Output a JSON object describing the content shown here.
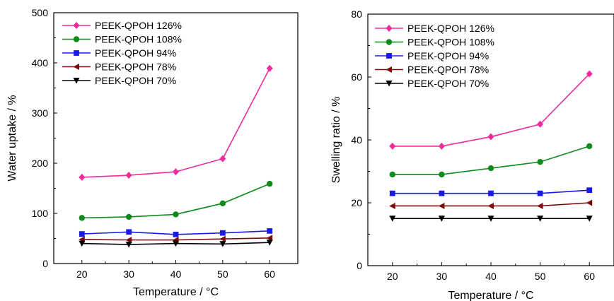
{
  "chart_data": [
    {
      "type": "line",
      "title": "",
      "xlabel": "Temperature / °C",
      "ylabel": "Water uptake / %",
      "xlim": [
        14,
        66
      ],
      "ylim": [
        0,
        500
      ],
      "x": [
        20,
        30,
        40,
        50,
        60
      ],
      "xticks": [
        20,
        30,
        40,
        50,
        60
      ],
      "yticks": [
        0,
        100,
        200,
        300,
        400,
        500
      ],
      "legend_position": "top-left",
      "series": [
        {
          "name": "PEEK-QPOH 126%",
          "color": "#ee2a9c",
          "marker": "diamond",
          "values": [
            172,
            176,
            183,
            209,
            389
          ]
        },
        {
          "name": "PEEK-QPOH 108%",
          "color": "#0e8a1d",
          "marker": "circle",
          "values": [
            91,
            93,
            98,
            120,
            159
          ]
        },
        {
          "name": "PEEK-QPOH 94%",
          "color": "#1a1ae6",
          "marker": "square",
          "values": [
            59,
            63,
            58,
            61,
            65
          ]
        },
        {
          "name": "PEEK-QPOH 78%",
          "color": "#7a0a0a",
          "marker": "triangle-left",
          "values": [
            48,
            47,
            47,
            49,
            51
          ]
        },
        {
          "name": "PEEK-QPOH 70%",
          "color": "#000000",
          "marker": "triangle-down",
          "values": [
            40,
            38,
            40,
            39,
            42
          ]
        }
      ]
    },
    {
      "type": "line",
      "title": "",
      "xlabel": "Temperature / °C",
      "ylabel": "Swelling ratio / %",
      "xlim": [
        15,
        65
      ],
      "ylim": [
        0,
        80
      ],
      "x": [
        20,
        30,
        40,
        50,
        60
      ],
      "xticks": [
        20,
        30,
        40,
        50,
        60
      ],
      "yticks": [
        0,
        20,
        40,
        60,
        80
      ],
      "legend_position": "top-left",
      "series": [
        {
          "name": "PEEK-QPOH 126%",
          "color": "#ee2a9c",
          "marker": "diamond",
          "values": [
            38,
            38,
            41,
            45,
            61
          ]
        },
        {
          "name": "PEEK-QPOH 108%",
          "color": "#0e8a1d",
          "marker": "circle",
          "values": [
            29,
            29,
            31,
            33,
            38
          ]
        },
        {
          "name": "PEEK-QPOH 94%",
          "color": "#1a1ae6",
          "marker": "square",
          "values": [
            23,
            23,
            23,
            23,
            24
          ]
        },
        {
          "name": "PEEK-QPOH 78%",
          "color": "#7a0a0a",
          "marker": "triangle-left",
          "values": [
            19,
            19,
            19,
            19,
            20
          ]
        },
        {
          "name": "PEEK-QPOH 70%",
          "color": "#000000",
          "marker": "triangle-down",
          "values": [
            15,
            15,
            15,
            15,
            15
          ]
        }
      ]
    }
  ]
}
